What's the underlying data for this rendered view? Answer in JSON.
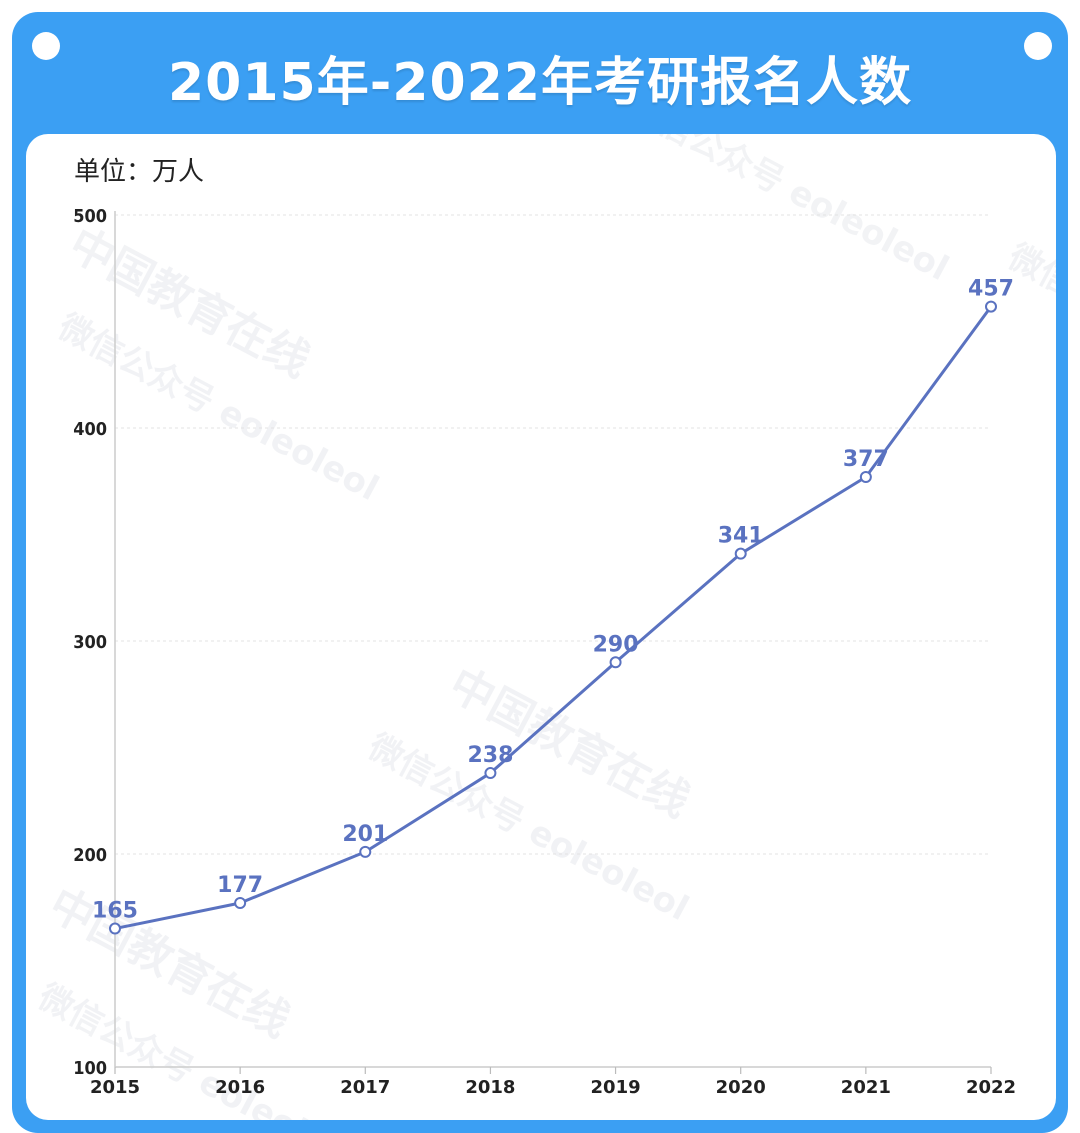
{
  "chart_data": {
    "type": "line",
    "title": "2015年-2022年考研报名人数",
    "unit_label": "单位：万人",
    "categories": [
      "2015",
      "2016",
      "2017",
      "2018",
      "2019",
      "2020",
      "2021",
      "2022"
    ],
    "series": [
      {
        "values": [
          165,
          177,
          201,
          238,
          290,
          341,
          377,
          457
        ]
      }
    ],
    "ylim": [
      100,
      500
    ],
    "yticks": [
      "100",
      "200",
      "300",
      "400",
      "500"
    ],
    "grid": true,
    "line_color": "#5a72c0",
    "frame_color": "#3b9ff3",
    "watermarks": [
      "中国教育在线",
      "微信公众号 eoleoleol"
    ]
  }
}
